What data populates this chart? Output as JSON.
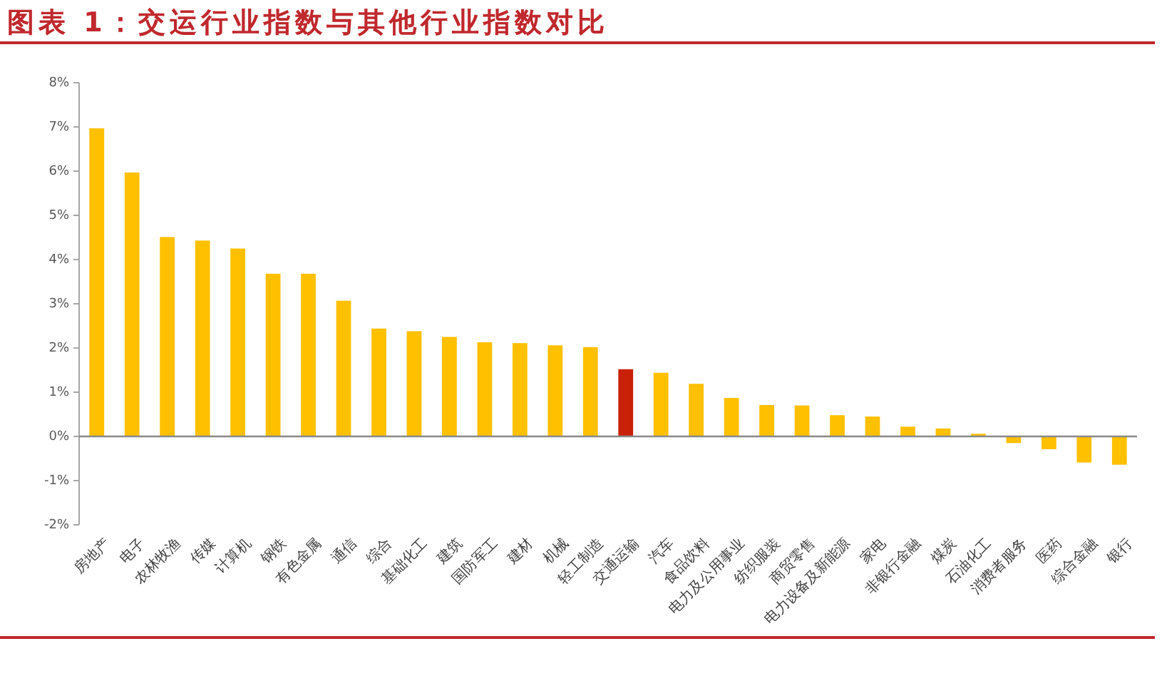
{
  "chart_data": {
    "type": "bar",
    "title": "图表 1：交运行业指数与其他行业指数对比",
    "categories": [
      "房地产",
      "电子",
      "农林牧渔",
      "传媒",
      "计算机",
      "钢铁",
      "有色金属",
      "通信",
      "综合",
      "基础化工",
      "建筑",
      "国防军工",
      "建材",
      "机械",
      "轻工制造",
      "交通运输",
      "汽车",
      "食品饮料",
      "电力及公用事业",
      "纺织服装",
      "商贸零售",
      "电力设备及新能源",
      "家电",
      "非银行金融",
      "煤炭",
      "石油化工",
      "消费者服务",
      "医药",
      "综合金融",
      "银行"
    ],
    "values": [
      6.97,
      5.97,
      4.51,
      4.43,
      4.25,
      3.68,
      3.68,
      3.07,
      2.44,
      2.38,
      2.25,
      2.13,
      2.11,
      2.06,
      2.02,
      1.52,
      1.44,
      1.19,
      0.87,
      0.71,
      0.7,
      0.48,
      0.45,
      0.22,
      0.18,
      0.06,
      -0.15,
      -0.29,
      -0.59,
      -0.64
    ],
    "colors": [
      "#ffc000",
      "#ffc000",
      "#ffc000",
      "#ffc000",
      "#ffc000",
      "#ffc000",
      "#ffc000",
      "#ffc000",
      "#ffc000",
      "#ffc000",
      "#ffc000",
      "#ffc000",
      "#ffc000",
      "#ffc000",
      "#ffc000",
      "#c82108",
      "#ffc000",
      "#ffc000",
      "#ffc000",
      "#ffc000",
      "#ffc000",
      "#ffc000",
      "#ffc000",
      "#ffc000",
      "#ffc000",
      "#ffc000",
      "#ffc000",
      "#ffc000",
      "#ffc000",
      "#ffc000"
    ],
    "ylim": [
      -2,
      8
    ],
    "yticks": [
      {
        "value": -2,
        "label": "-2%"
      },
      {
        "value": -1,
        "label": "-1%"
      },
      {
        "value": 0,
        "label": "0%"
      },
      {
        "value": 1,
        "label": "1%"
      },
      {
        "value": 2,
        "label": "2%"
      },
      {
        "value": 3,
        "label": "3%"
      },
      {
        "value": 4,
        "label": "4%"
      },
      {
        "value": 5,
        "label": "5%"
      },
      {
        "value": 6,
        "label": "6%"
      },
      {
        "value": 7,
        "label": "7%"
      },
      {
        "value": 8,
        "label": "8%"
      }
    ]
  }
}
